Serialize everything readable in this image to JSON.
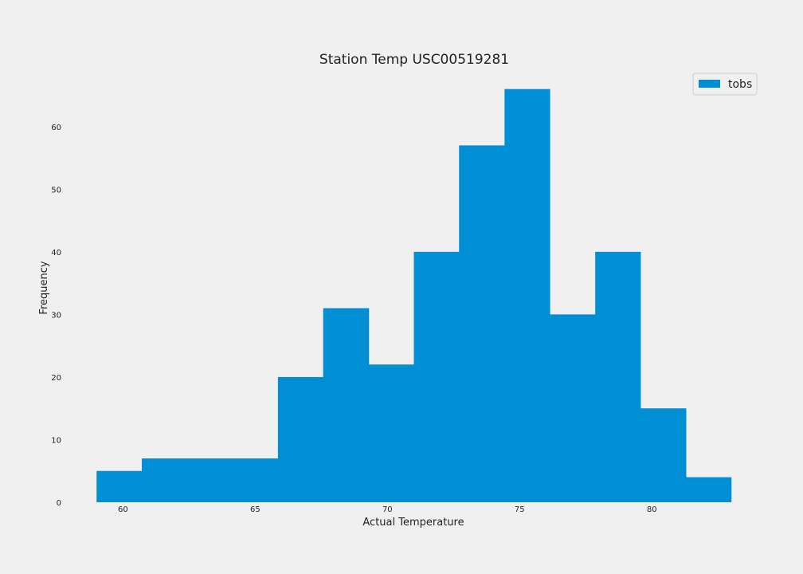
{
  "chart_data": {
    "type": "bar",
    "title": "Station Temp USC00519281",
    "xlabel": "Actual Temperature",
    "ylabel": "Frequency",
    "xlim": [
      58.3,
      83.7
    ],
    "ylim": [
      0,
      68
    ],
    "xticks": [
      60,
      65,
      70,
      75,
      80
    ],
    "yticks": [
      0,
      10,
      20,
      30,
      40,
      50,
      60
    ],
    "grid": false,
    "legend_position": "top-right",
    "bin_edges": [
      59.0,
      60.71,
      62.43,
      64.14,
      65.86,
      67.57,
      69.29,
      71.0,
      72.71,
      74.43,
      76.14,
      77.86,
      79.57,
      81.29,
      83.0
    ],
    "series": [
      {
        "name": "tobs",
        "color": "#008fd5",
        "values": [
          5,
          7,
          7,
          7,
          20,
          31,
          22,
          40,
          57,
          66,
          30,
          40,
          15,
          4
        ]
      }
    ]
  }
}
